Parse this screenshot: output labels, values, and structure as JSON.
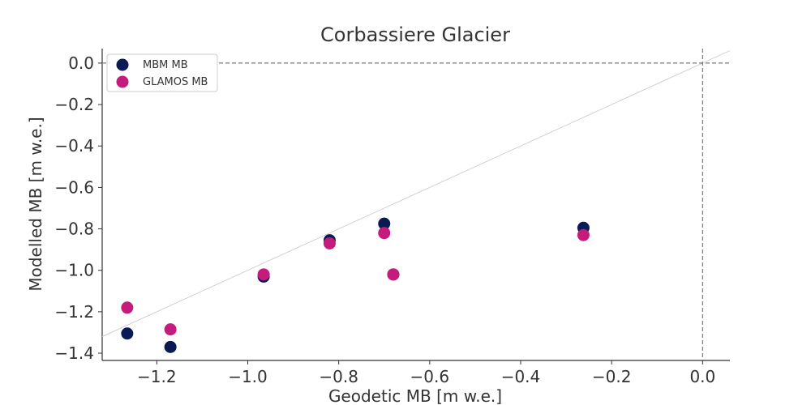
{
  "chart_data": {
    "type": "scatter",
    "title": "Corbassiere Glacier",
    "xlabel": "Geodetic MB [m w.e.]",
    "ylabel": "Modelled MB [m w.e.]",
    "xlim": [
      -1.32,
      0.06
    ],
    "ylim": [
      -1.435,
      0.07
    ],
    "xticks": [
      -1.2,
      -1.0,
      -0.8,
      -0.6,
      -0.4,
      -0.2,
      0.0
    ],
    "yticks": [
      0.0,
      -0.2,
      -0.4,
      -0.6,
      -0.8,
      -1.0,
      -1.2,
      -1.4
    ],
    "xtick_labels": [
      "−1.2",
      "−1.0",
      "−0.8",
      "−0.6",
      "−0.4",
      "−0.2",
      "0.0"
    ],
    "ytick_labels": [
      "0.0",
      "−0.2",
      "−0.4",
      "−0.6",
      "−0.8",
      "−1.0",
      "−1.2",
      "−1.4"
    ],
    "grid": false,
    "reference_lines": [
      "y = x",
      "x = 0",
      "y = 0"
    ],
    "legend_position": "top-left",
    "series": [
      {
        "name": "MBM MB",
        "color": "#0a1a55",
        "x": [
          -1.265,
          -1.17,
          -0.965,
          -0.82,
          -0.7,
          -0.68,
          -0.262
        ],
        "y": [
          -1.305,
          -1.37,
          -1.03,
          -0.855,
          -0.775,
          -1.02,
          -0.795
        ]
      },
      {
        "name": "GLAMOS MB",
        "color": "#c51b7d",
        "x": [
          -1.265,
          -1.17,
          -0.965,
          -0.82,
          -0.7,
          -0.68,
          -0.262
        ],
        "y": [
          -1.18,
          -1.285,
          -1.02,
          -0.87,
          -0.82,
          -1.02,
          -0.83
        ]
      }
    ]
  }
}
